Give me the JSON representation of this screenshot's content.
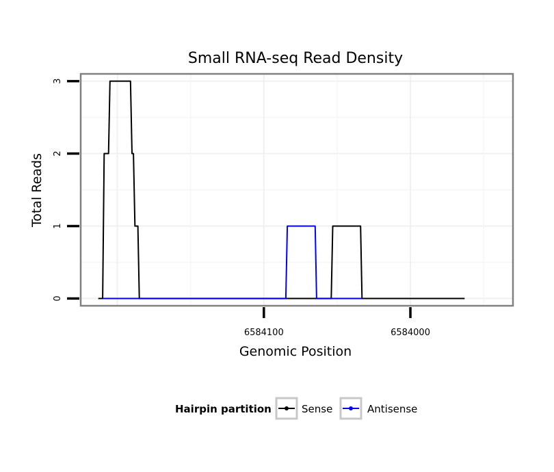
{
  "chart_data": {
    "type": "line",
    "title": "Small RNA-seq Read Density",
    "xlabel": "Genomic Position",
    "ylabel": "Total Reads",
    "xlim": [
      6584225,
      6583930
    ],
    "ylim": [
      -0.1,
      3.1
    ],
    "x_ticks": [
      {
        "value": 6584100,
        "label": "6584100"
      },
      {
        "value": 6584000,
        "label": "6584000"
      }
    ],
    "y_ticks": [
      {
        "value": 0,
        "label": "0"
      },
      {
        "value": 1,
        "label": "1"
      },
      {
        "value": 2,
        "label": "2"
      },
      {
        "value": 3,
        "label": "3"
      }
    ],
    "grid": true,
    "legend_position": "bottom",
    "legend_title": "Hairpin partition",
    "series": [
      {
        "name": "Sense",
        "color": "#000000",
        "points": [
          [
            6584213,
            0
          ],
          [
            6584210,
            0
          ],
          [
            6584209,
            2
          ],
          [
            6584206,
            2
          ],
          [
            6584205,
            3
          ],
          [
            6584191,
            3
          ],
          [
            6584190,
            2
          ],
          [
            6584189,
            2
          ],
          [
            6584188,
            1
          ],
          [
            6584186,
            1
          ],
          [
            6584185,
            0
          ],
          [
            6584054,
            0
          ],
          [
            6584053,
            1
          ],
          [
            6584034,
            1
          ],
          [
            6584033,
            0
          ],
          [
            6583963,
            0
          ]
        ]
      },
      {
        "name": "Antisense",
        "color": "#0000ff",
        "points": [
          [
            6584210,
            0
          ],
          [
            6584185,
            0
          ],
          [
            6584085,
            0
          ],
          [
            6584084,
            1
          ],
          [
            6584065,
            1
          ],
          [
            6584064,
            0
          ],
          [
            6584033,
            0
          ]
        ]
      }
    ]
  }
}
